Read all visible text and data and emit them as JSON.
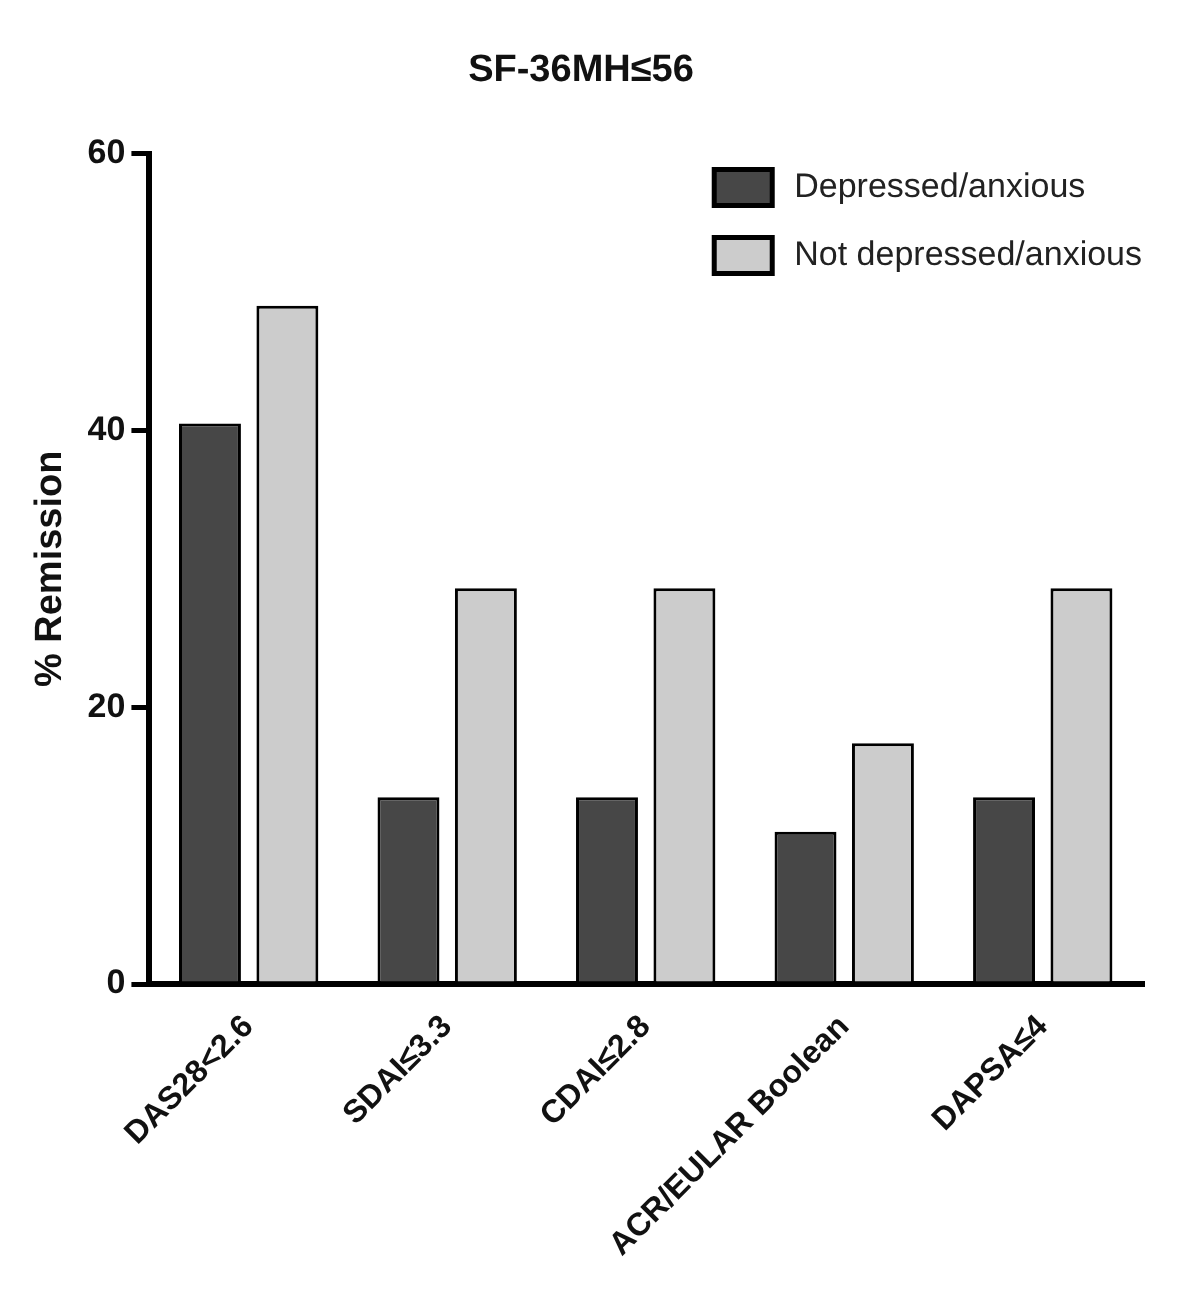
{
  "chart_data": {
    "type": "bar",
    "title": "SF-36MH≤56",
    "ylabel": "% Remission",
    "categories": [
      "DAS28<2.6",
      "SDAI≤3.3",
      "CDAI≤2.8",
      "ACR/EULAR Boolean",
      "DAPSA≤4"
    ],
    "series": [
      {
        "name": "Depressed/anxious",
        "color": "#474747",
        "values": [
          40.5,
          13.5,
          13.5,
          11,
          13.5
        ]
      },
      {
        "name": "Not depressed/anxious",
        "color": "#cccccc",
        "values": [
          49,
          28.6,
          28.6,
          17.4,
          28.6
        ]
      }
    ],
    "ylim": [
      0,
      60
    ],
    "yticks": [
      0,
      20,
      40,
      60
    ],
    "grid": false,
    "legend": "top right"
  }
}
